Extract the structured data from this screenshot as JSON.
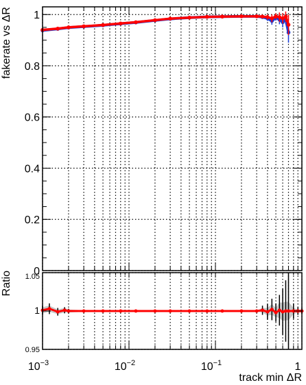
{
  "chart_data": [
    {
      "panel": "top",
      "type": "scatter",
      "xscale": "log",
      "xlim": [
        0.001,
        1
      ],
      "ylim": [
        0,
        1.03
      ],
      "ylabel": "fakerate vs ΔR",
      "x_ticks": [
        {
          "value": 0.001,
          "mantissa": "10",
          "exp": "−3"
        },
        {
          "value": 0.01,
          "mantissa": "10",
          "exp": "−2"
        },
        {
          "value": 0.1,
          "mantissa": "10",
          "exp": "−1"
        },
        {
          "value": 1,
          "mantissa": "1",
          "exp": ""
        }
      ],
      "y_ticks": [
        "0",
        "0.2",
        "0.4",
        "0.6",
        "0.8",
        "1"
      ],
      "y_tick_values": [
        0,
        0.2,
        0.4,
        0.6,
        0.8,
        1
      ],
      "grid": true,
      "colors": {
        "series_blue": "#1a3cd6",
        "series_red": "#ff0000"
      },
      "series": [
        {
          "color": "#1a3cd6",
          "x": [
            0.001,
            0.0015,
            0.002,
            0.003,
            0.005,
            0.008,
            0.012,
            0.02,
            0.03,
            0.05,
            0.08,
            0.12,
            0.2,
            0.3,
            0.35,
            0.4,
            0.45,
            0.5,
            0.55,
            0.6,
            0.65,
            0.7
          ],
          "y": [
            0.938,
            0.944,
            0.949,
            0.953,
            0.958,
            0.964,
            0.969,
            0.977,
            0.983,
            0.988,
            0.991,
            0.992,
            0.993,
            0.993,
            0.99,
            0.985,
            0.975,
            0.988,
            0.98,
            0.97,
            0.982,
            0.93
          ],
          "yerr": [
            0.006,
            0.004,
            0.004,
            0.003,
            0.003,
            0.002,
            0.002,
            0.002,
            0.002,
            0.002,
            0.002,
            0.002,
            0.002,
            0.003,
            0.006,
            0.01,
            0.015,
            0.012,
            0.018,
            0.02,
            0.02,
            0.04
          ]
        },
        {
          "color": "#ff0000",
          "x": [
            0.001,
            0.0015,
            0.002,
            0.003,
            0.005,
            0.008,
            0.012,
            0.02,
            0.03,
            0.05,
            0.08,
            0.12,
            0.2,
            0.3,
            0.35,
            0.4,
            0.45,
            0.5,
            0.55,
            0.6,
            0.65,
            0.7
          ],
          "y": [
            0.94,
            0.945,
            0.95,
            0.954,
            0.959,
            0.965,
            0.97,
            0.978,
            0.984,
            0.988,
            0.991,
            0.992,
            0.993,
            0.993,
            0.992,
            0.99,
            0.985,
            0.993,
            0.99,
            0.985,
            0.992,
            0.96
          ],
          "yerr": [
            0.006,
            0.004,
            0.004,
            0.003,
            0.003,
            0.002,
            0.002,
            0.002,
            0.002,
            0.002,
            0.002,
            0.002,
            0.002,
            0.003,
            0.006,
            0.01,
            0.015,
            0.012,
            0.018,
            0.02,
            0.02,
            0.04
          ]
        }
      ]
    },
    {
      "panel": "ratio",
      "type": "scatter",
      "xscale": "log",
      "xlim": [
        0.001,
        1
      ],
      "ylim": [
        0.95,
        1.05
      ],
      "ylabel": "Ratio",
      "xlabel": "track min ΔR",
      "y_ticks": [
        "0.95",
        "1",
        "1.05"
      ],
      "y_tick_values": [
        0.95,
        1,
        1.05
      ],
      "grid": true,
      "colors": {
        "ratio_points": "#ff0000",
        "error_band": "#c8c8c8",
        "error_bars": "#000000"
      },
      "series": [
        {
          "color": "#ff0000",
          "x": [
            0.001,
            0.0012,
            0.0015,
            0.0018,
            0.002,
            0.003,
            0.005,
            0.008,
            0.012,
            0.02,
            0.03,
            0.05,
            0.08,
            0.12,
            0.2,
            0.3,
            0.35,
            0.4,
            0.45,
            0.5,
            0.55,
            0.6,
            0.65,
            0.7,
            0.8,
            0.9,
            1.0
          ],
          "y": [
            1.001,
            1.003,
            0.999,
            1.001,
            1.0,
            1.0,
            1.0,
            1.0,
            1.0,
            1.0,
            1.0,
            1.0,
            1.0,
            1.0,
            1.0,
            1.0,
            1.001,
            0.999,
            1.002,
            0.998,
            1.001,
            0.999,
            1.0,
            1.0,
            1.0,
            1.0,
            1.0
          ],
          "yerr": [
            0.006,
            0.007,
            0.005,
            0.004,
            0.003,
            0.002,
            0.001,
            0.001,
            0.001,
            0.001,
            0.001,
            0.001,
            0.001,
            0.001,
            0.001,
            0.002,
            0.006,
            0.01,
            0.014,
            0.012,
            0.02,
            0.03,
            0.04,
            0.05,
            0.01,
            0.005,
            0.004
          ],
          "band": [
            0.004,
            0.004,
            0.003,
            0.003,
            0.002,
            0.001,
            0.001,
            0.001,
            0.001,
            0.001,
            0.001,
            0.001,
            0.001,
            0.001,
            0.001,
            0.001,
            0.003,
            0.005,
            0.007,
            0.006,
            0.01,
            0.012,
            0.012,
            0.012,
            0.004,
            0.002,
            0.002
          ]
        }
      ]
    }
  ]
}
